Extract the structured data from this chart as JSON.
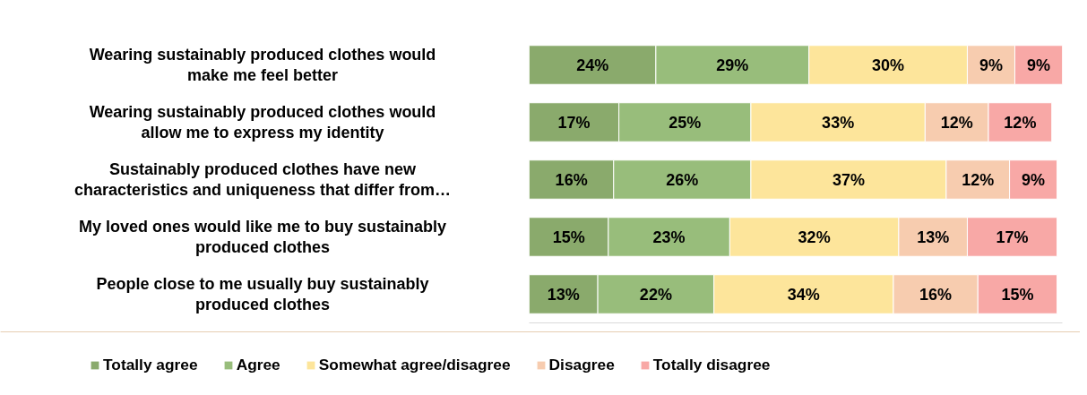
{
  "chart_data": {
    "type": "bar",
    "orientation": "horizontal",
    "stacked": true,
    "legend": "bottom",
    "grid": false,
    "categories": [
      "Wearing sustainably produced clothes would make me feel better",
      "Wearing sustainably produced clothes would allow me to express my identity",
      "Sustainably produced clothes have new characteristics and uniqueness that differ from…",
      "My loved ones would like me to buy sustainably produced clothes",
      "People close to me usually buy sustainably produced clothes"
    ],
    "series": [
      {
        "name": "Totally agree",
        "color": "#8aaa6c",
        "values": [
          24,
          17,
          16,
          15,
          13
        ],
        "value_labels": [
          "24%",
          "17%",
          "16%",
          "15%",
          "13%"
        ]
      },
      {
        "name": "Agree",
        "color": "#98bd7b",
        "values": [
          29,
          25,
          26,
          23,
          22
        ],
        "value_labels": [
          "29%",
          "25%",
          "26%",
          "23%",
          "22%"
        ]
      },
      {
        "name": "Somewhat agree/disagree",
        "color": "#fde59b",
        "values": [
          30,
          33,
          37,
          32,
          34
        ],
        "value_labels": [
          "30%",
          "33%",
          "37%",
          "32%",
          "34%"
        ]
      },
      {
        "name": "Disagree",
        "color": "#f7ccaf",
        "values": [
          9,
          12,
          12,
          13,
          16
        ],
        "value_labels": [
          "9%",
          "12%",
          "12%",
          "13%",
          "16%"
        ]
      },
      {
        "name": "Totally disagree",
        "color": "#f8a8a6",
        "values": [
          9,
          12,
          9,
          17,
          15
        ],
        "value_labels": [
          "9%",
          "12%",
          "9%",
          "17%",
          "15%"
        ]
      }
    ]
  }
}
